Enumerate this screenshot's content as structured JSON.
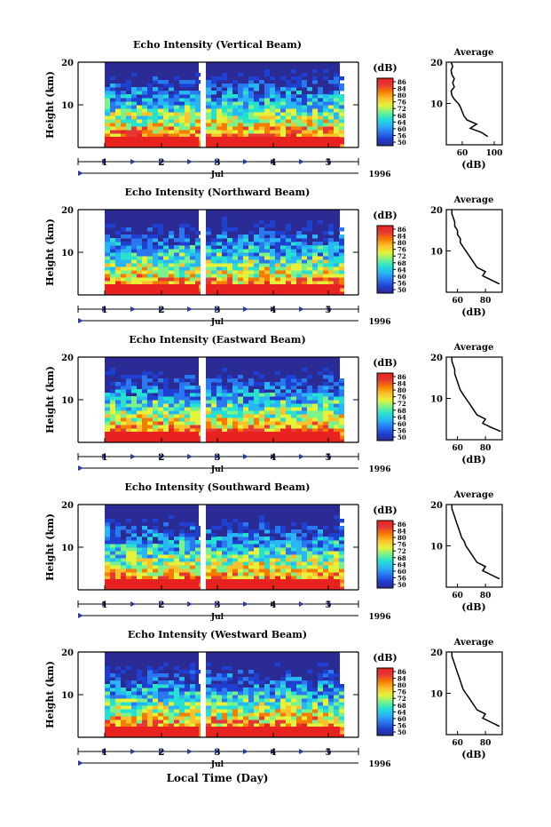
{
  "chart_data": {
    "type": "heatmap",
    "year_label": "1996",
    "month_label": "Jul",
    "xlabel": "Local Time (Day)",
    "ylabel": "Height (km)",
    "ylim": [
      0,
      20
    ],
    "yticks": [
      10,
      20
    ],
    "xticks": [
      1,
      2,
      3,
      4,
      5
    ],
    "xlim": [
      0.5,
      5.5
    ],
    "colorbar": {
      "label": "(dB)",
      "range": [
        50,
        90
      ],
      "ticks": [
        86,
        84,
        80,
        76,
        72,
        68,
        64,
        60,
        56,
        50
      ],
      "colors": [
        "#2b2b95",
        "#1f3fd0",
        "#2a78f0",
        "#29b6f6",
        "#26e0d0",
        "#7bf28a",
        "#e6f23a",
        "#fbc02d",
        "#f57c00",
        "#e53935",
        "#e8231f"
      ]
    },
    "average_title": "Average",
    "average_xlabel": "(dB)",
    "panels": [
      {
        "title": "Echo Intensity (Vertical Beam)",
        "avg_xticks": [
          "60",
          "100"
        ],
        "avg_xlim": [
          40,
          110
        ],
        "avg_profile": {
          "height": [
            2,
            3,
            4,
            5,
            6,
            7,
            8,
            9,
            10,
            11,
            12,
            13,
            14,
            15,
            16,
            17,
            18,
            19,
            20
          ],
          "db": [
            92,
            84,
            70,
            78,
            66,
            62,
            60,
            58,
            55,
            50,
            47,
            46,
            50,
            48,
            50,
            47,
            46,
            48,
            46
          ]
        }
      },
      {
        "title": "Echo Intensity (Northward Beam)",
        "avg_xticks": [
          "60",
          "80"
        ],
        "avg_xlim": [
          52,
          92
        ],
        "avg_profile": {
          "height": [
            2,
            3,
            4,
            5,
            6,
            7,
            8,
            9,
            10,
            11,
            12,
            13,
            14,
            15,
            16,
            17,
            18,
            19,
            20
          ],
          "db": [
            90,
            84,
            78,
            80,
            74,
            72,
            70,
            68,
            66,
            64,
            62,
            62,
            60,
            60,
            58,
            58,
            57,
            56,
            56
          ]
        }
      },
      {
        "title": "Echo Intensity (Eastward Beam)",
        "avg_xticks": [
          "60",
          "80"
        ],
        "avg_xlim": [
          52,
          92
        ],
        "avg_profile": {
          "height": [
            2,
            3,
            4,
            5,
            6,
            7,
            8,
            9,
            10,
            11,
            12,
            13,
            14,
            15,
            16,
            17,
            18,
            19,
            20
          ],
          "db": [
            91,
            84,
            78,
            80,
            74,
            72,
            70,
            68,
            66,
            64,
            62,
            61,
            60,
            59,
            58,
            58,
            57,
            56,
            56
          ]
        }
      },
      {
        "title": "Echo Intensity (Southward Beam)",
        "avg_xticks": [
          "60",
          "80"
        ],
        "avg_xlim": [
          52,
          92
        ],
        "avg_profile": {
          "height": [
            2,
            3,
            4,
            5,
            6,
            7,
            8,
            9,
            10,
            11,
            12,
            13,
            14,
            15,
            16,
            17,
            18,
            19,
            20
          ],
          "db": [
            90,
            84,
            78,
            80,
            74,
            72,
            70,
            68,
            66,
            65,
            63,
            62,
            61,
            60,
            59,
            58,
            57,
            56,
            56
          ]
        }
      },
      {
        "title": "Echo Intensity (Westward Beam)",
        "avg_xticks": [
          "60",
          "80"
        ],
        "avg_xlim": [
          52,
          92
        ],
        "avg_profile": {
          "height": [
            2,
            3,
            4,
            5,
            6,
            7,
            8,
            9,
            10,
            11,
            12,
            13,
            14,
            15,
            16,
            17,
            18,
            19,
            20
          ],
          "db": [
            90,
            84,
            78,
            80,
            74,
            72,
            70,
            68,
            66,
            64,
            63,
            62,
            61,
            60,
            59,
            58,
            57,
            56,
            56
          ]
        }
      }
    ]
  }
}
